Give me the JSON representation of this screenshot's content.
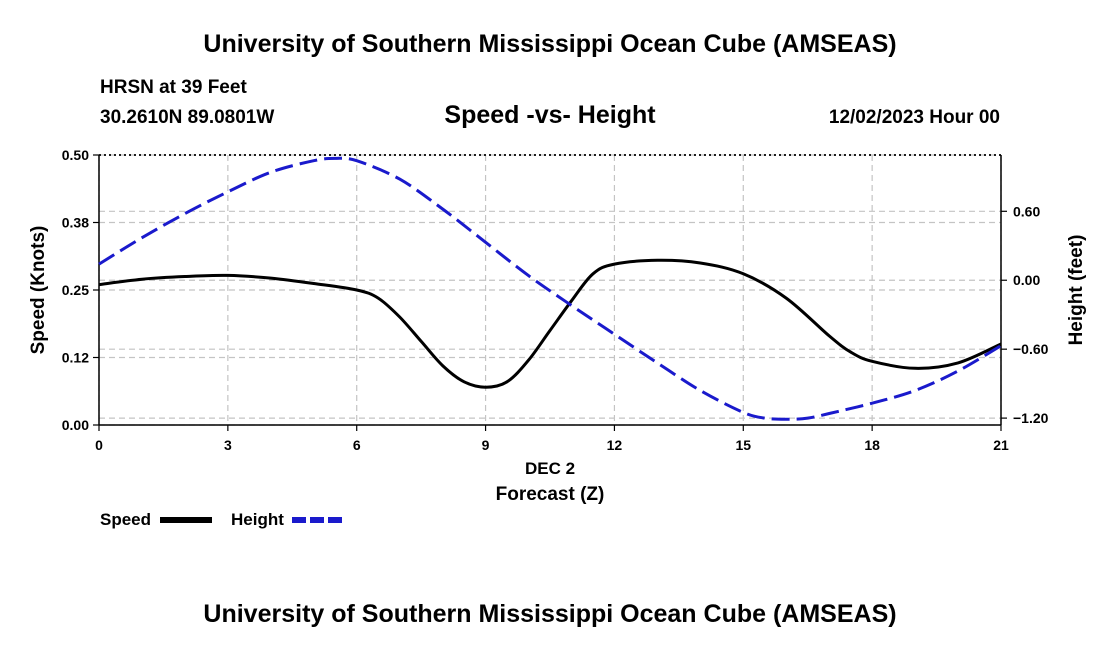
{
  "header": {
    "title": "University of Southern Mississippi Ocean Cube (AMSEAS)",
    "footer_title": "University of Southern Mississippi Ocean Cube (AMSEAS)",
    "station": "HRSN at 39 Feet",
    "coords": "30.2610N  89.0801W",
    "plot_title": "Speed -vs- Height",
    "date": "12/02/2023 Hour 00"
  },
  "chart_data": {
    "type": "line",
    "title": "Speed -vs- Height",
    "xlabel": "Forecast (Z)",
    "xlabel_top": "DEC 2",
    "ylabel": "Speed (Knots)",
    "y2label": "Height (feet)",
    "xlim": [
      0,
      21
    ],
    "ylim": [
      0,
      0.5
    ],
    "y2lim": [
      -1.26,
      1.09
    ],
    "x_ticks": [
      0,
      3,
      6,
      9,
      12,
      15,
      18,
      21
    ],
    "x_tick_labels": [
      "0",
      "3",
      "6",
      "9",
      "12",
      "15",
      "18",
      "21"
    ],
    "y_ticks": [
      0,
      0.125,
      0.25,
      0.375,
      0.5
    ],
    "y_tick_labels": [
      "0.00",
      "0.12",
      "0.25",
      "0.38",
      "0.50"
    ],
    "y2_ticks": [
      -1.2,
      -0.6,
      0,
      0.6
    ],
    "y2_tick_labels": [
      "−1.20",
      "−0.60",
      "0.00",
      "0.60"
    ],
    "grid": true,
    "legend": {
      "position": "bottom-left"
    },
    "series": [
      {
        "name": "Speed",
        "axis": "left",
        "color": "#000000",
        "style": "solid",
        "x": [
          0,
          1,
          2,
          3,
          4,
          5,
          6,
          6.5,
          7,
          7.5,
          8,
          8.5,
          9,
          9.5,
          10,
          10.5,
          11,
          11.5,
          12,
          13,
          14,
          15,
          16,
          17,
          17.5,
          18,
          19,
          20,
          21
        ],
        "values": [
          0.26,
          0.27,
          0.275,
          0.277,
          0.272,
          0.262,
          0.25,
          0.235,
          0.2,
          0.155,
          0.11,
          0.08,
          0.07,
          0.08,
          0.12,
          0.175,
          0.23,
          0.28,
          0.298,
          0.305,
          0.3,
          0.28,
          0.235,
          0.165,
          0.135,
          0.118,
          0.105,
          0.115,
          0.15
        ]
      },
      {
        "name": "Height",
        "axis": "right",
        "color": "#1a1acc",
        "style": "dashed",
        "x": [
          0,
          1,
          2,
          3,
          4,
          5,
          5.5,
          6,
          7,
          8,
          9,
          10,
          11,
          12,
          13,
          14,
          15,
          15.5,
          16,
          16.5,
          17,
          18,
          19,
          20,
          21
        ],
        "values": [
          0.14,
          0.37,
          0.58,
          0.77,
          0.94,
          1.04,
          1.06,
          1.04,
          0.88,
          0.62,
          0.33,
          0.04,
          -0.22,
          -0.47,
          -0.72,
          -0.96,
          -1.15,
          -1.2,
          -1.21,
          -1.2,
          -1.16,
          -1.07,
          -0.96,
          -0.79,
          -0.57
        ]
      }
    ]
  }
}
